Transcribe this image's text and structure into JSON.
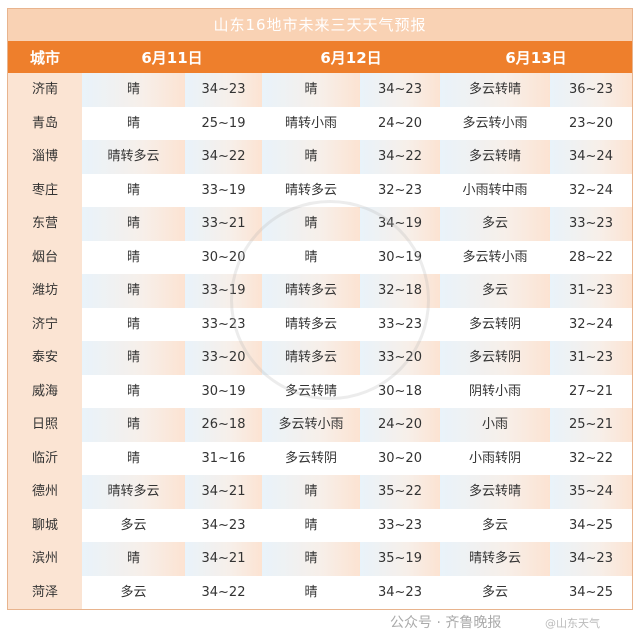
{
  "title": "山东16地市未来三天天气预报",
  "headers": {
    "city": "城市",
    "d1": "6月11日",
    "d2": "6月12日",
    "d3": "6月13日"
  },
  "rows": [
    [
      "济南",
      "晴",
      "34~23",
      "晴",
      "34~23",
      "多云转晴",
      "36~23"
    ],
    [
      "青岛",
      "晴",
      "25~19",
      "晴转小雨",
      "24~20",
      "多云转小雨",
      "23~20"
    ],
    [
      "淄博",
      "晴转多云",
      "34~22",
      "晴",
      "34~22",
      "多云转晴",
      "34~24"
    ],
    [
      "枣庄",
      "晴",
      "33~19",
      "晴转多云",
      "32~23",
      "小雨转中雨",
      "32~24"
    ],
    [
      "东营",
      "晴",
      "33~21",
      "晴",
      "34~19",
      "多云",
      "33~23"
    ],
    [
      "烟台",
      "晴",
      "30~20",
      "晴",
      "30~19",
      "多云转小雨",
      "28~22"
    ],
    [
      "潍坊",
      "晴",
      "33~19",
      "晴转多云",
      "32~18",
      "多云",
      "31~23"
    ],
    [
      "济宁",
      "晴",
      "33~23",
      "晴转多云",
      "33~23",
      "多云转阴",
      "32~24"
    ],
    [
      "泰安",
      "晴",
      "33~20",
      "晴转多云",
      "33~20",
      "多云转阴",
      "31~23"
    ],
    [
      "威海",
      "晴",
      "30~19",
      "多云转晴",
      "30~18",
      "阴转小雨",
      "27~21"
    ],
    [
      "日照",
      "晴",
      "26~18",
      "多云转小雨",
      "24~20",
      "小雨",
      "25~21"
    ],
    [
      "临沂",
      "晴",
      "31~16",
      "多云转阴",
      "30~20",
      "小雨转阴",
      "32~22"
    ],
    [
      "德州",
      "晴转多云",
      "34~21",
      "晴",
      "35~22",
      "多云转晴",
      "35~24"
    ],
    [
      "聊城",
      "多云",
      "34~23",
      "晴",
      "33~23",
      "多云",
      "34~25"
    ],
    [
      "滨州",
      "晴",
      "34~21",
      "晴",
      "35~19",
      "晴转多云",
      "34~23"
    ],
    [
      "菏泽",
      "多云",
      "34~22",
      "晴",
      "34~23",
      "多云",
      "34~25"
    ]
  ],
  "watermark": {
    "source": "公众号 · 齐鲁晚报",
    "seal": "@山东天气"
  },
  "colors": {
    "header": "#ee7f2c",
    "title_bg": "#f9d2b4",
    "city_bg": "#fbe4d3"
  }
}
